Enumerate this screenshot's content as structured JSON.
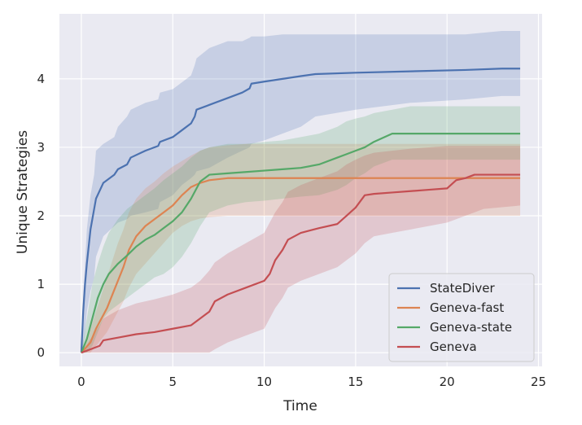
{
  "chart_data": {
    "type": "line",
    "title": "",
    "xlabel": "Time",
    "ylabel": "Unique Strategies",
    "xlim": [
      -1.2,
      25.2
    ],
    "ylim": [
      -0.2,
      4.95
    ],
    "xticks": [
      0,
      5,
      10,
      15,
      20,
      25
    ],
    "yticks": [
      0,
      1,
      2,
      3,
      4
    ],
    "grid": true,
    "legend_position": "lower-right",
    "series": [
      {
        "name": "StateDiver",
        "color": "#4c72b0",
        "x": [
          0,
          0.1,
          0.2,
          0.3,
          0.5,
          0.7,
          0.8,
          1.2,
          1.8,
          2.0,
          2.5,
          2.7,
          3.5,
          4.2,
          4.3,
          5.0,
          5.5,
          6.0,
          6.2,
          6.3,
          7.0,
          8.0,
          8.8,
          9.2,
          9.3,
          10.0,
          11.0,
          12.0,
          12.8,
          15.0,
          18.0,
          21.0,
          23.0,
          24.0
        ],
        "y": [
          0,
          0.6,
          1.0,
          1.3,
          1.8,
          2.1,
          2.25,
          2.48,
          2.6,
          2.68,
          2.75,
          2.85,
          2.95,
          3.02,
          3.08,
          3.15,
          3.25,
          3.35,
          3.45,
          3.55,
          3.62,
          3.72,
          3.8,
          3.86,
          3.93,
          3.96,
          4.0,
          4.04,
          4.07,
          4.09,
          4.11,
          4.13,
          4.15,
          4.15
        ],
        "band_upper": [
          0,
          0.8,
          1.3,
          1.8,
          2.3,
          2.6,
          2.95,
          3.05,
          3.15,
          3.3,
          3.45,
          3.55,
          3.65,
          3.7,
          3.8,
          3.85,
          3.95,
          4.05,
          4.2,
          4.3,
          4.45,
          4.55,
          4.55,
          4.6,
          4.62,
          4.62,
          4.65,
          4.65,
          4.65,
          4.65,
          4.65,
          4.65,
          4.7,
          4.7
        ],
        "band_lower": [
          0,
          0.1,
          0.3,
          0.6,
          0.9,
          1.1,
          1.4,
          1.7,
          1.85,
          1.9,
          1.95,
          2.0,
          2.05,
          2.1,
          2.2,
          2.3,
          2.45,
          2.55,
          2.6,
          2.65,
          2.7,
          2.85,
          2.95,
          3.0,
          3.05,
          3.1,
          3.2,
          3.3,
          3.45,
          3.55,
          3.65,
          3.7,
          3.75,
          3.75
        ]
      },
      {
        "name": "Geneva-fast",
        "color": "#dd8452",
        "x": [
          0,
          0.5,
          0.8,
          1.1,
          1.4,
          1.7,
          2.0,
          2.3,
          2.6,
          3.0,
          3.5,
          4.0,
          4.5,
          5.0,
          5.5,
          6.0,
          6.5,
          7.0,
          8.0,
          9.0,
          10.0,
          12.0,
          15.0,
          18.0,
          21.0,
          24.0
        ],
        "y": [
          0,
          0.15,
          0.35,
          0.5,
          0.65,
          0.85,
          1.05,
          1.25,
          1.5,
          1.7,
          1.85,
          1.95,
          2.05,
          2.15,
          2.3,
          2.42,
          2.48,
          2.52,
          2.55,
          2.55,
          2.55,
          2.55,
          2.55,
          2.55,
          2.55,
          2.55
        ],
        "band_upper": [
          0,
          0.35,
          0.6,
          0.85,
          1.1,
          1.35,
          1.6,
          1.8,
          2.05,
          2.25,
          2.4,
          2.5,
          2.62,
          2.72,
          2.8,
          2.88,
          2.95,
          3.0,
          3.03,
          3.05,
          3.05,
          3.05,
          3.05,
          3.05,
          3.05,
          3.05
        ],
        "band_lower": [
          0,
          0.0,
          0.1,
          0.2,
          0.3,
          0.45,
          0.6,
          0.75,
          0.95,
          1.15,
          1.3,
          1.45,
          1.6,
          1.75,
          1.85,
          1.92,
          1.96,
          1.98,
          2.0,
          2.0,
          2.0,
          2.0,
          2.0,
          2.0,
          2.0,
          2.0
        ]
      },
      {
        "name": "Geneva-state",
        "color": "#55a868",
        "x": [
          0,
          0.3,
          0.6,
          0.9,
          1.2,
          1.5,
          2.0,
          2.5,
          3.0,
          3.5,
          4.0,
          4.5,
          5.0,
          5.5,
          6.0,
          6.5,
          7.0,
          8.0,
          9.0,
          10.0,
          11.0,
          12.0,
          13.0,
          14.0,
          14.5,
          15.0,
          15.5,
          16.0,
          17.0,
          18.0,
          20.0,
          22.0,
          24.0
        ],
        "y": [
          0,
          0.2,
          0.5,
          0.8,
          1.0,
          1.15,
          1.3,
          1.42,
          1.55,
          1.65,
          1.72,
          1.82,
          1.92,
          2.05,
          2.25,
          2.5,
          2.6,
          2.62,
          2.64,
          2.66,
          2.68,
          2.7,
          2.75,
          2.85,
          2.9,
          2.95,
          3.0,
          3.08,
          3.2,
          3.2,
          3.2,
          3.2,
          3.2
        ],
        "band_upper": [
          0,
          0.5,
          1.0,
          1.3,
          1.55,
          1.75,
          1.95,
          2.1,
          2.2,
          2.3,
          2.4,
          2.52,
          2.62,
          2.72,
          2.85,
          2.95,
          3.0,
          3.05,
          3.05,
          3.08,
          3.1,
          3.15,
          3.2,
          3.3,
          3.38,
          3.42,
          3.45,
          3.5,
          3.55,
          3.6,
          3.6,
          3.6,
          3.6
        ],
        "band_lower": [
          0,
          0.0,
          0.1,
          0.3,
          0.5,
          0.6,
          0.7,
          0.8,
          0.9,
          1.0,
          1.1,
          1.15,
          1.25,
          1.4,
          1.6,
          1.85,
          2.05,
          2.15,
          2.2,
          2.22,
          2.25,
          2.28,
          2.3,
          2.38,
          2.45,
          2.55,
          2.62,
          2.72,
          2.82,
          2.82,
          2.82,
          2.82,
          2.82
        ]
      },
      {
        "name": "Geneva",
        "color": "#c44e52",
        "x": [
          0,
          0.5,
          1.0,
          1.2,
          2.0,
          3.0,
          4.0,
          5.0,
          6.0,
          6.5,
          7.0,
          7.3,
          8.0,
          9.0,
          10.0,
          10.3,
          10.6,
          11.0,
          11.3,
          12.0,
          13.0,
          14.0,
          14.5,
          15.0,
          15.5,
          16.0,
          17.0,
          18.0,
          19.0,
          20.0,
          20.5,
          21.0,
          21.5,
          22.0,
          24.0
        ],
        "y": [
          0,
          0.05,
          0.1,
          0.18,
          0.22,
          0.27,
          0.3,
          0.35,
          0.4,
          0.5,
          0.6,
          0.75,
          0.85,
          0.95,
          1.05,
          1.15,
          1.35,
          1.5,
          1.65,
          1.75,
          1.82,
          1.88,
          2.0,
          2.12,
          2.3,
          2.32,
          2.34,
          2.36,
          2.38,
          2.4,
          2.52,
          2.55,
          2.6,
          2.6,
          2.6
        ],
        "band_upper": [
          0,
          0.2,
          0.4,
          0.5,
          0.62,
          0.72,
          0.78,
          0.85,
          0.95,
          1.05,
          1.2,
          1.32,
          1.45,
          1.6,
          1.75,
          1.9,
          2.05,
          2.2,
          2.35,
          2.45,
          2.55,
          2.65,
          2.75,
          2.82,
          2.88,
          2.92,
          2.95,
          2.98,
          3.0,
          3.02,
          3.02,
          3.02,
          3.02,
          3.02,
          3.02
        ],
        "band_lower": [
          0,
          0.0,
          0.0,
          0.0,
          0.0,
          0.0,
          0.0,
          0.0,
          0.0,
          0.0,
          0.0,
          0.05,
          0.15,
          0.25,
          0.35,
          0.5,
          0.65,
          0.8,
          0.95,
          1.05,
          1.15,
          1.25,
          1.35,
          1.45,
          1.6,
          1.7,
          1.75,
          1.8,
          1.85,
          1.9,
          1.95,
          2.0,
          2.05,
          2.1,
          2.15
        ]
      }
    ]
  }
}
